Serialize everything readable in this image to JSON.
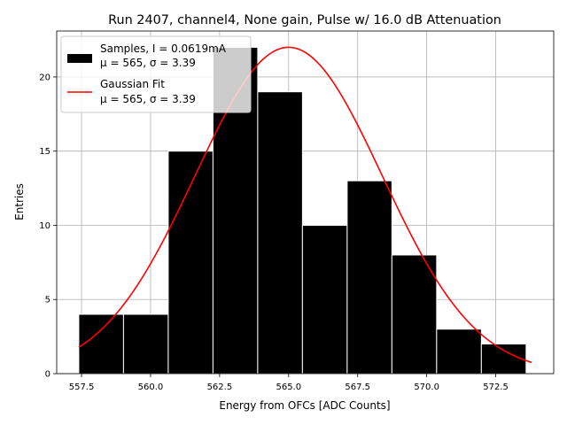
{
  "chart_data": {
    "type": "bar",
    "title": "Run 2407, channel4, None gain, Pulse w/ 16.0 dB Attenuation",
    "xlabel": "Energy from OFCs [ADC Counts]",
    "ylabel": "Entries",
    "xlim": [
      556.6,
      574.6
    ],
    "ylim": [
      0,
      23.1
    ],
    "grid": true,
    "legend_position": "top-left",
    "bin_edges": [
      557.4,
      559.02,
      560.64,
      562.26,
      563.88,
      565.5,
      567.12,
      568.74,
      570.36,
      571.98,
      573.6
    ],
    "counts": [
      4,
      4,
      15,
      22,
      19,
      10,
      13,
      8,
      3,
      2
    ],
    "bar_color": "#000000",
    "bar_edge_color": "#ffffff",
    "fit": {
      "mu": 565.0,
      "sigma": 3.39,
      "amplitude": 22.0,
      "x_start": 557.4,
      "x_end": 573.8,
      "color": "#ff0000"
    },
    "x_ticks": [
      {
        "value": 557.5,
        "label": "557.5"
      },
      {
        "value": 560.0,
        "label": "560.0"
      },
      {
        "value": 562.5,
        "label": "562.5"
      },
      {
        "value": 565.0,
        "label": "565.0"
      },
      {
        "value": 567.5,
        "label": "567.5"
      },
      {
        "value": 570.0,
        "label": "570.0"
      },
      {
        "value": 572.5,
        "label": "572.5"
      }
    ],
    "y_ticks": [
      {
        "value": 0,
        "label": "0"
      },
      {
        "value": 5,
        "label": "5"
      },
      {
        "value": 10,
        "label": "10"
      },
      {
        "value": 15,
        "label": "15"
      },
      {
        "value": 20,
        "label": "20"
      }
    ],
    "legend": [
      {
        "kind": "patch",
        "line1": "Samples, I = 0.0619mA",
        "line2": "μ = 565, σ = 3.39",
        "color": "#000000"
      },
      {
        "kind": "line",
        "line1": "Gaussian Fit",
        "line2": "μ = 565, σ = 3.39",
        "color": "#ff0000"
      }
    ]
  }
}
